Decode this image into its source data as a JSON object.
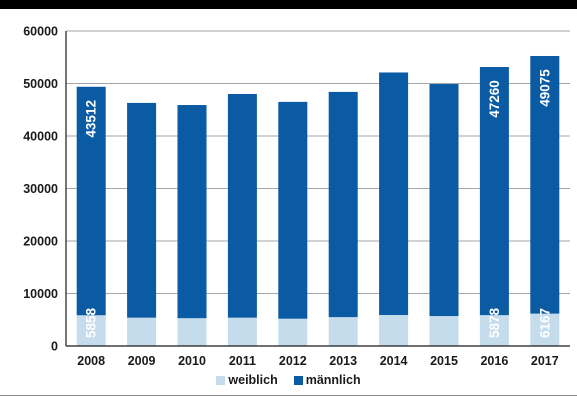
{
  "chart_data": {
    "type": "bar",
    "stacked": true,
    "categories": [
      "2008",
      "2009",
      "2010",
      "2011",
      "2012",
      "2013",
      "2014",
      "2015",
      "2016",
      "2017"
    ],
    "series": [
      {
        "name": "weiblich",
        "color": "#c4dcec",
        "values": [
          5858,
          5400,
          5300,
          5400,
          5200,
          5500,
          5900,
          5700,
          5878,
          6167
        ],
        "labels": [
          "5858",
          "",
          "",
          "",
          "",
          "",
          "",
          "",
          "5878",
          "6167"
        ]
      },
      {
        "name": "männlich",
        "color": "#0a5aa4",
        "values": [
          43512,
          40900,
          40600,
          42600,
          41300,
          42900,
          46200,
          44200,
          47260,
          49075
        ],
        "labels": [
          "43512",
          "",
          "",
          "",
          "",
          "",
          "",
          "",
          "47260",
          "49075"
        ]
      }
    ],
    "yticks": [
      "0",
      "10000",
      "20000",
      "30000",
      "40000",
      "50000",
      "60000"
    ],
    "ylim": [
      0,
      60000
    ],
    "grid": true,
    "legend": "bottom"
  }
}
